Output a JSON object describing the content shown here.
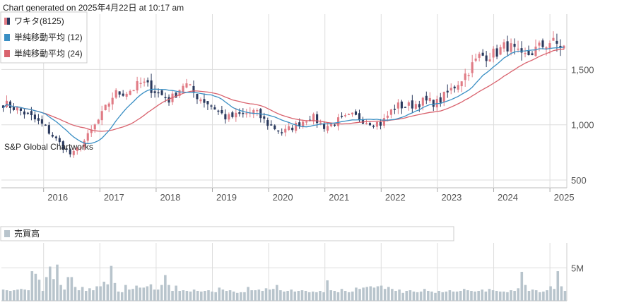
{
  "generated_text": "Chart generated on 2025年4月22日 at 10:17 am",
  "watermark": "S&P Global Chartworks",
  "colors": {
    "up": "#e07b85",
    "down": "#2b3a5e",
    "sma12": "#3a8fc4",
    "sma24": "#d9636e",
    "volume": "#b8c4cc",
    "grid": "#dddddd"
  },
  "chart_data": [
    {
      "type": "candlestick",
      "legend": [
        {
          "label": "ワキタ(8125)",
          "color": "candle"
        },
        {
          "label": "単純移動平均 (12)",
          "color": "#3a8fc4"
        },
        {
          "label": "単純移動平均 (24)",
          "color": "#d9636e"
        }
      ],
      "legend_position": "top-left",
      "x_ticks": [
        "2016",
        "2017",
        "2018",
        "2019",
        "2020",
        "2021",
        "2022",
        "2023",
        "2024",
        "2025"
      ],
      "y_ticks": [
        "1,500",
        "1,000",
        "500"
      ],
      "y_tick_values": [
        1500,
        1000,
        500
      ],
      "ylim": [
        430,
        2000
      ],
      "x_range": [
        2015.25,
        2025.3
      ],
      "grid": true,
      "close_anchors": [
        [
          2015.25,
          1200
        ],
        [
          2015.5,
          1150
        ],
        [
          2015.75,
          1080
        ],
        [
          2016.0,
          990
        ],
        [
          2016.25,
          850
        ],
        [
          2016.5,
          720
        ],
        [
          2016.75,
          870
        ],
        [
          2017.0,
          1060
        ],
        [
          2017.25,
          1280
        ],
        [
          2017.5,
          1300
        ],
        [
          2017.75,
          1380
        ],
        [
          2018.0,
          1300
        ],
        [
          2018.25,
          1220
        ],
        [
          2018.5,
          1380
        ],
        [
          2018.75,
          1250
        ],
        [
          2019.0,
          1170
        ],
        [
          2019.25,
          1060
        ],
        [
          2019.5,
          1090
        ],
        [
          2019.75,
          1120
        ],
        [
          2020.0,
          1000
        ],
        [
          2020.25,
          930
        ],
        [
          2020.5,
          1000
        ],
        [
          2020.75,
          1080
        ],
        [
          2021.0,
          980
        ],
        [
          2021.25,
          1040
        ],
        [
          2021.5,
          1080
        ],
        [
          2021.75,
          1030
        ],
        [
          2022.0,
          1010
        ],
        [
          2022.25,
          1170
        ],
        [
          2022.5,
          1170
        ],
        [
          2022.75,
          1210
        ],
        [
          2023.0,
          1200
        ],
        [
          2023.25,
          1320
        ],
        [
          2023.5,
          1460
        ],
        [
          2023.75,
          1620
        ],
        [
          2024.0,
          1640
        ],
        [
          2024.25,
          1720
        ],
        [
          2024.5,
          1600
        ],
        [
          2024.75,
          1680
        ],
        [
          2025.0,
          1750
        ],
        [
          2025.25,
          1700
        ]
      ]
    },
    {
      "type": "bar",
      "name": "売買高",
      "legend": [
        {
          "label": "売買高",
          "color": "#b8c4cc"
        }
      ],
      "y_ticks": [
        "5M"
      ],
      "y_tick_values": [
        5
      ],
      "ylim": [
        0,
        8.8
      ],
      "unit": "M",
      "values": [
        1.7,
        1.6,
        1.5,
        1.6,
        1.7,
        1.8,
        1.7,
        1.6,
        4.5,
        4.1,
        3.2,
        1.5,
        3.6,
        5.2,
        3.3,
        5.5,
        2.4,
        1.7,
        3.6,
        3.6,
        2.1,
        1.6,
        2.1,
        1.5,
        1.9,
        1.6,
        2.2,
        2.2,
        2.9,
        2.5,
        5.3,
        2.7,
        1.4,
        1.3,
        2.4,
        1.7,
        1.8,
        2.3,
        2.0,
        2.0,
        2.2,
        2.5,
        1.7,
        1.7,
        2.4,
        3.9,
        2.4,
        1.5,
        2.3,
        1.5,
        1.6,
        1.5,
        1.4,
        1.7,
        1.5,
        1.4,
        1.5,
        1.6,
        1.4,
        1.3,
        2.0,
        1.7,
        1.5,
        1.6,
        1.4,
        1.2,
        1.3,
        1.3,
        2.1,
        1.6,
        1.6,
        1.7,
        1.5,
        1.9,
        1.7,
        1.8,
        2.4,
        1.6,
        1.4,
        1.5,
        1.7,
        1.4,
        1.5,
        1.6,
        1.5,
        1.3,
        1.4,
        1.3,
        1.5,
        1.3,
        3.1,
        1.6,
        1.5,
        1.3,
        1.8,
        1.5,
        1.3,
        1.4,
        2.0,
        1.8,
        2.0,
        2.1,
        2.2,
        2.0,
        2.2,
        2.3,
        1.8,
        2.1,
        1.8,
        1.5,
        1.7,
        1.2,
        1.5,
        1.6,
        1.4,
        1.3,
        1.4,
        1.8,
        1.5,
        1.4,
        1.2,
        1.5,
        1.3,
        1.4,
        1.6,
        1.4,
        1.4,
        1.5,
        1.8,
        1.6,
        1.5,
        1.4,
        1.5,
        1.7,
        1.4,
        1.8,
        1.6,
        1.5,
        1.4,
        1.4,
        1.3,
        1.6,
        1.5,
        1.9,
        4.4,
        2.4,
        1.5,
        1.7,
        1.6,
        1.3,
        1.4,
        1.6,
        2.2,
        1.8,
        4.5,
        2.2,
        1.5
      ]
    }
  ]
}
